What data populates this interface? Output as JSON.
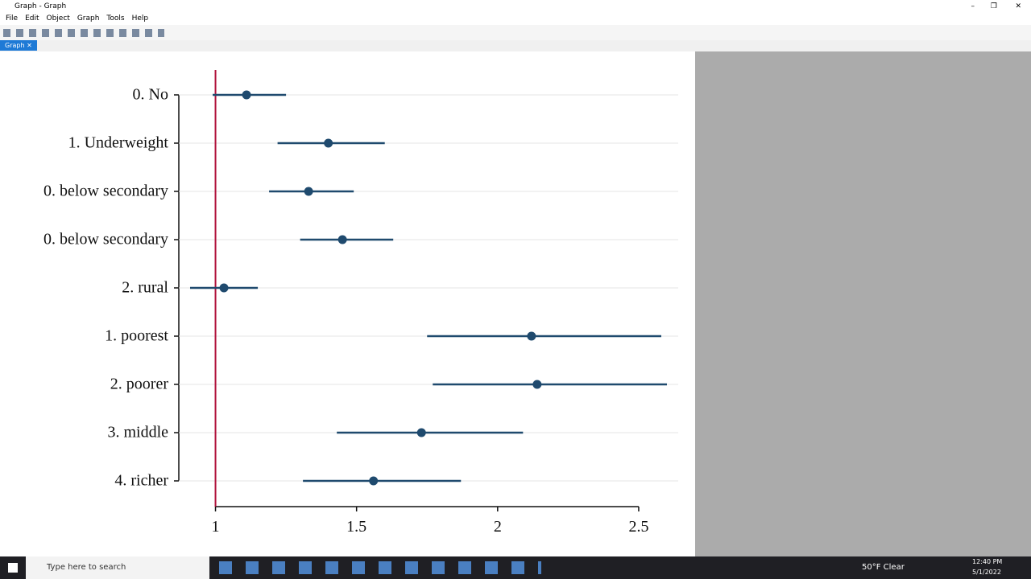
{
  "window": {
    "title": "Graph - Graph",
    "menu": [
      "File",
      "Edit",
      "Object",
      "Graph",
      "Tools",
      "Help"
    ],
    "tab": "Graph"
  },
  "chart_data": {
    "type": "errorbar",
    "categories": [
      "0. No",
      "1. Underweight",
      "0. below secondary",
      "0. below secondary",
      "2. rural",
      "1. poorest",
      "2. poorer",
      "3. middle",
      "4. richer"
    ],
    "series": [
      {
        "color": "#1f4a6e",
        "values": [
          1.11,
          1.4,
          1.33,
          1.45,
          1.03,
          2.12,
          2.14,
          1.73,
          1.56
        ],
        "ci_low": [
          0.99,
          1.22,
          1.19,
          1.3,
          0.91,
          1.75,
          1.77,
          1.43,
          1.31
        ],
        "ci_high": [
          1.25,
          1.6,
          1.49,
          1.63,
          1.15,
          2.58,
          2.6,
          2.09,
          1.87
        ]
      }
    ],
    "xlim": [
      0.87,
      2.64
    ],
    "xticks": [
      1,
      1.5,
      2,
      2.5
    ],
    "reference_line": 1,
    "reference_color": "#b0103a",
    "grid": true
  },
  "taskbar": {
    "search": "Type here to search",
    "weather": "50°F  Clear",
    "time": "12:40 PM",
    "date": "5/1/2022"
  }
}
